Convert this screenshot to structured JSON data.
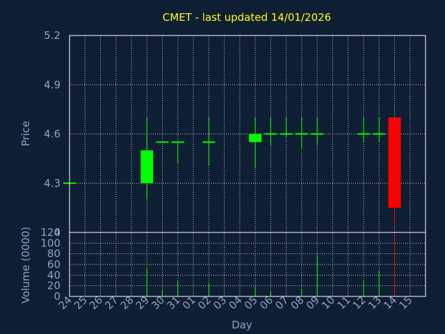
{
  "chart_data": {
    "type": "candlestick",
    "title": "CMET - last updated 14/01/2026",
    "xlabel": "Day",
    "price_ylabel": "Price",
    "volume_ylabel": "Volume (0000)",
    "x_tick_labels": [
      "24",
      "25",
      "26",
      "27",
      "28",
      "29",
      "30",
      "31",
      "01",
      "02",
      "03",
      "04",
      "05",
      "06",
      "07",
      "08",
      "09",
      "10",
      "11",
      "12",
      "13",
      "14",
      "15"
    ],
    "price_ylim": [
      4.0,
      5.2
    ],
    "price_ticks": [
      "5.2",
      "4.9",
      "4.6",
      "4.3",
      "4"
    ],
    "price_tick_values": [
      5.2,
      4.9,
      4.6,
      4.3,
      4.0
    ],
    "volume_ylim": [
      0,
      120
    ],
    "volume_ticks": [
      "120",
      "100",
      "80",
      "60",
      "40",
      "20",
      "0"
    ],
    "volume_tick_values": [
      120,
      100,
      80,
      60,
      40,
      20,
      0
    ],
    "grid": true,
    "colors": {
      "background": "#0f1f33",
      "up": "#00ff00",
      "down": "#ff0000",
      "grid": "#c8c8c8",
      "frame": "#ffffff",
      "title": "#ffff00",
      "tick": "#8fa3c0"
    },
    "candles": [
      {
        "day": "24",
        "open": 4.3,
        "close": 4.3,
        "high": 4.3,
        "low": 4.3
      },
      {
        "day": "29",
        "open": 4.3,
        "close": 4.5,
        "high": 4.7,
        "low": 4.2
      },
      {
        "day": "30",
        "open": 4.55,
        "close": 4.55,
        "high": 4.55,
        "low": 4.55
      },
      {
        "day": "31",
        "open": 4.55,
        "close": 4.55,
        "high": 4.55,
        "low": 4.42
      },
      {
        "day": "02",
        "open": 4.55,
        "close": 4.55,
        "high": 4.7,
        "low": 4.41
      },
      {
        "day": "05",
        "open": 4.55,
        "close": 4.6,
        "high": 4.7,
        "low": 4.39
      },
      {
        "day": "06",
        "open": 4.6,
        "close": 4.6,
        "high": 4.7,
        "low": 4.53
      },
      {
        "day": "07",
        "open": 4.6,
        "close": 4.6,
        "high": 4.7,
        "low": 4.58
      },
      {
        "day": "08",
        "open": 4.6,
        "close": 4.6,
        "high": 4.7,
        "low": 4.51
      },
      {
        "day": "09",
        "open": 4.6,
        "close": 4.6,
        "high": 4.7,
        "low": 4.53
      },
      {
        "day": "12",
        "open": 4.6,
        "close": 4.6,
        "high": 4.7,
        "low": 4.55
      },
      {
        "day": "13",
        "open": 4.6,
        "close": 4.6,
        "high": 4.7,
        "low": 4.55
      },
      {
        "day": "14",
        "open": 4.7,
        "close": 4.15,
        "high": 4.7,
        "low": 4.05
      }
    ],
    "volume": [
      {
        "day": "24",
        "value": 0
      },
      {
        "day": "29",
        "value": 52
      },
      {
        "day": "30",
        "value": 12
      },
      {
        "day": "31",
        "value": 30
      },
      {
        "day": "02",
        "value": 26
      },
      {
        "day": "05",
        "value": 18
      },
      {
        "day": "06",
        "value": 10
      },
      {
        "day": "07",
        "value": 0
      },
      {
        "day": "08",
        "value": 14
      },
      {
        "day": "09",
        "value": 78
      },
      {
        "day": "12",
        "value": 30
      },
      {
        "day": "13",
        "value": 48
      },
      {
        "day": "14",
        "value": 115
      }
    ]
  }
}
